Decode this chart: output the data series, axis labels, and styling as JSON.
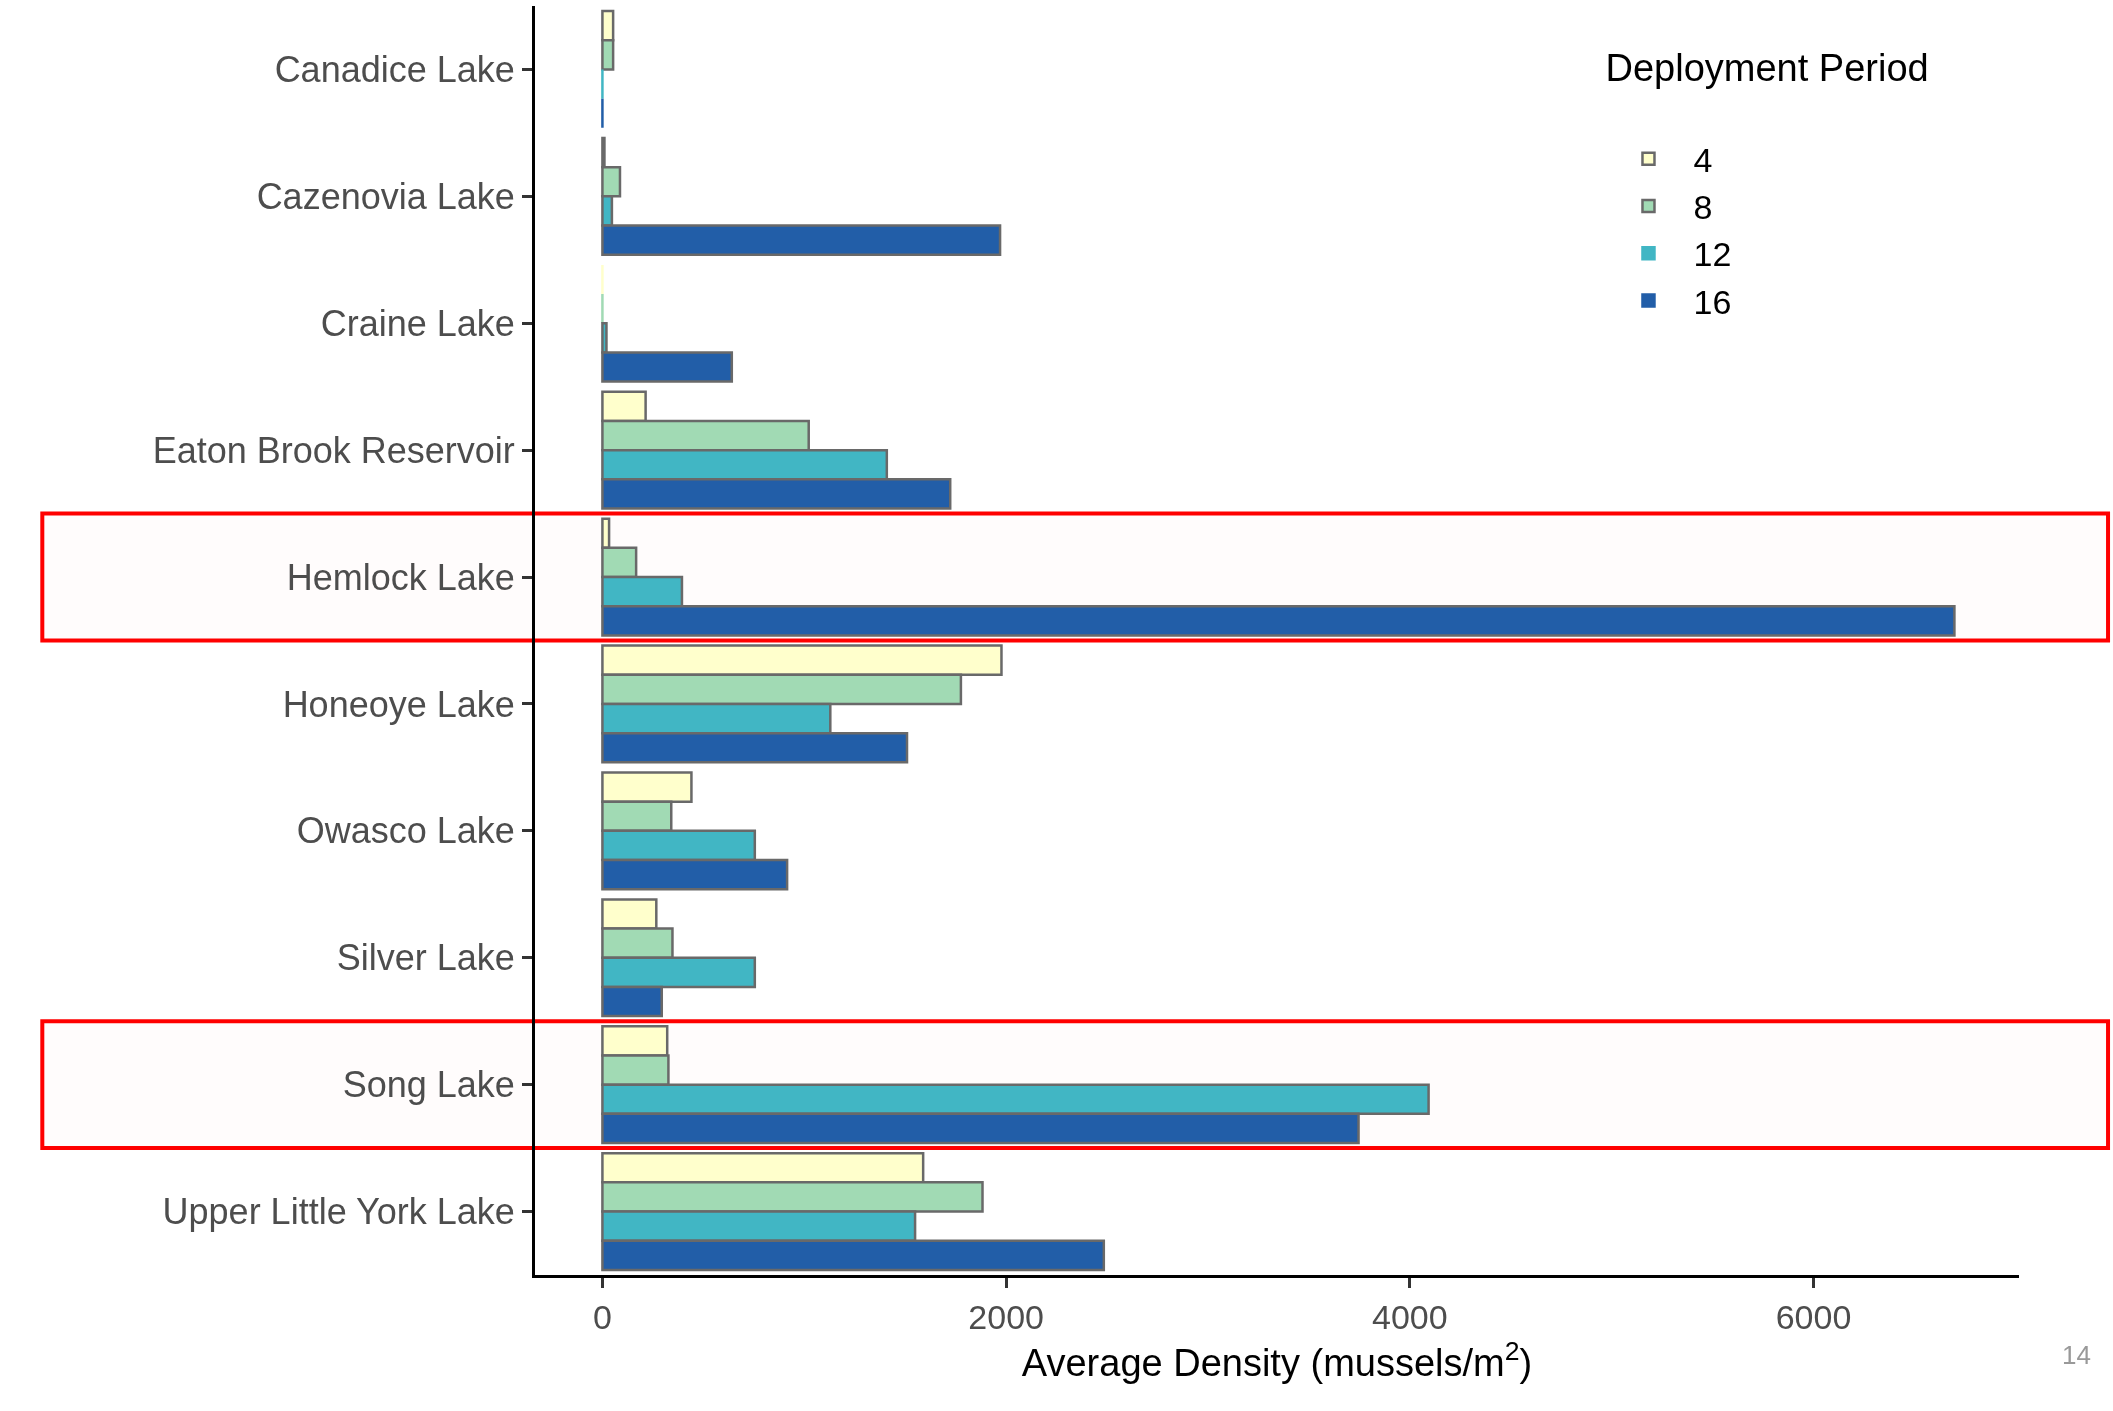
{
  "chart_data": {
    "type": "bar",
    "orientation": "horizontal",
    "xlabel": "Average Density (mussels/m$^{2}$)",
    "legend_title": "Deployment Period",
    "legend": "top right",
    "grid": false,
    "categories": [
      "Canadice Lake",
      "Cazenovia Lake",
      "Craine Lake",
      "Eaton Brook Reservoir",
      "Hemlock Lake",
      "Honeoye Lake",
      "Owasco Lake",
      "Silver Lake",
      "Song Lake",
      "Upper Little York Lake"
    ],
    "series": [
      {
        "name": "4",
        "color": "#ffffcc",
        "values": [
          53,
          10,
          0,
          214,
          33,
          1977,
          441,
          267,
          321,
          1589
        ]
      },
      {
        "name": "8",
        "color": "#a1dab4",
        "values": [
          53,
          87,
          0,
          1022,
          167,
          1776,
          341,
          347,
          327,
          1883
        ]
      },
      {
        "name": "12",
        "color": "#41b6c4",
        "values": [
          0,
          47,
          20,
          1409,
          394,
          1129,
          755,
          755,
          4093,
          1549
        ]
      },
      {
        "name": "16",
        "color": "#225ea8",
        "values": [
          0,
          1970,
          641,
          1723,
          6698,
          1509,
          915,
          294,
          3746,
          2484
        ]
      }
    ],
    "xlim": [
      -334,
      7018
    ],
    "xticks": [
      0,
      2000,
      4000,
      6000
    ],
    "bands": [
      {
        "axis": "y",
        "from": "Hemlock Lake",
        "to": "Hemlock Lake",
        "color": "#ff0000"
      },
      {
        "axis": "y",
        "from": "Song Lake",
        "to": "Song Lake",
        "color": "#ff0000"
      }
    ],
    "annotations": [
      "14"
    ]
  }
}
